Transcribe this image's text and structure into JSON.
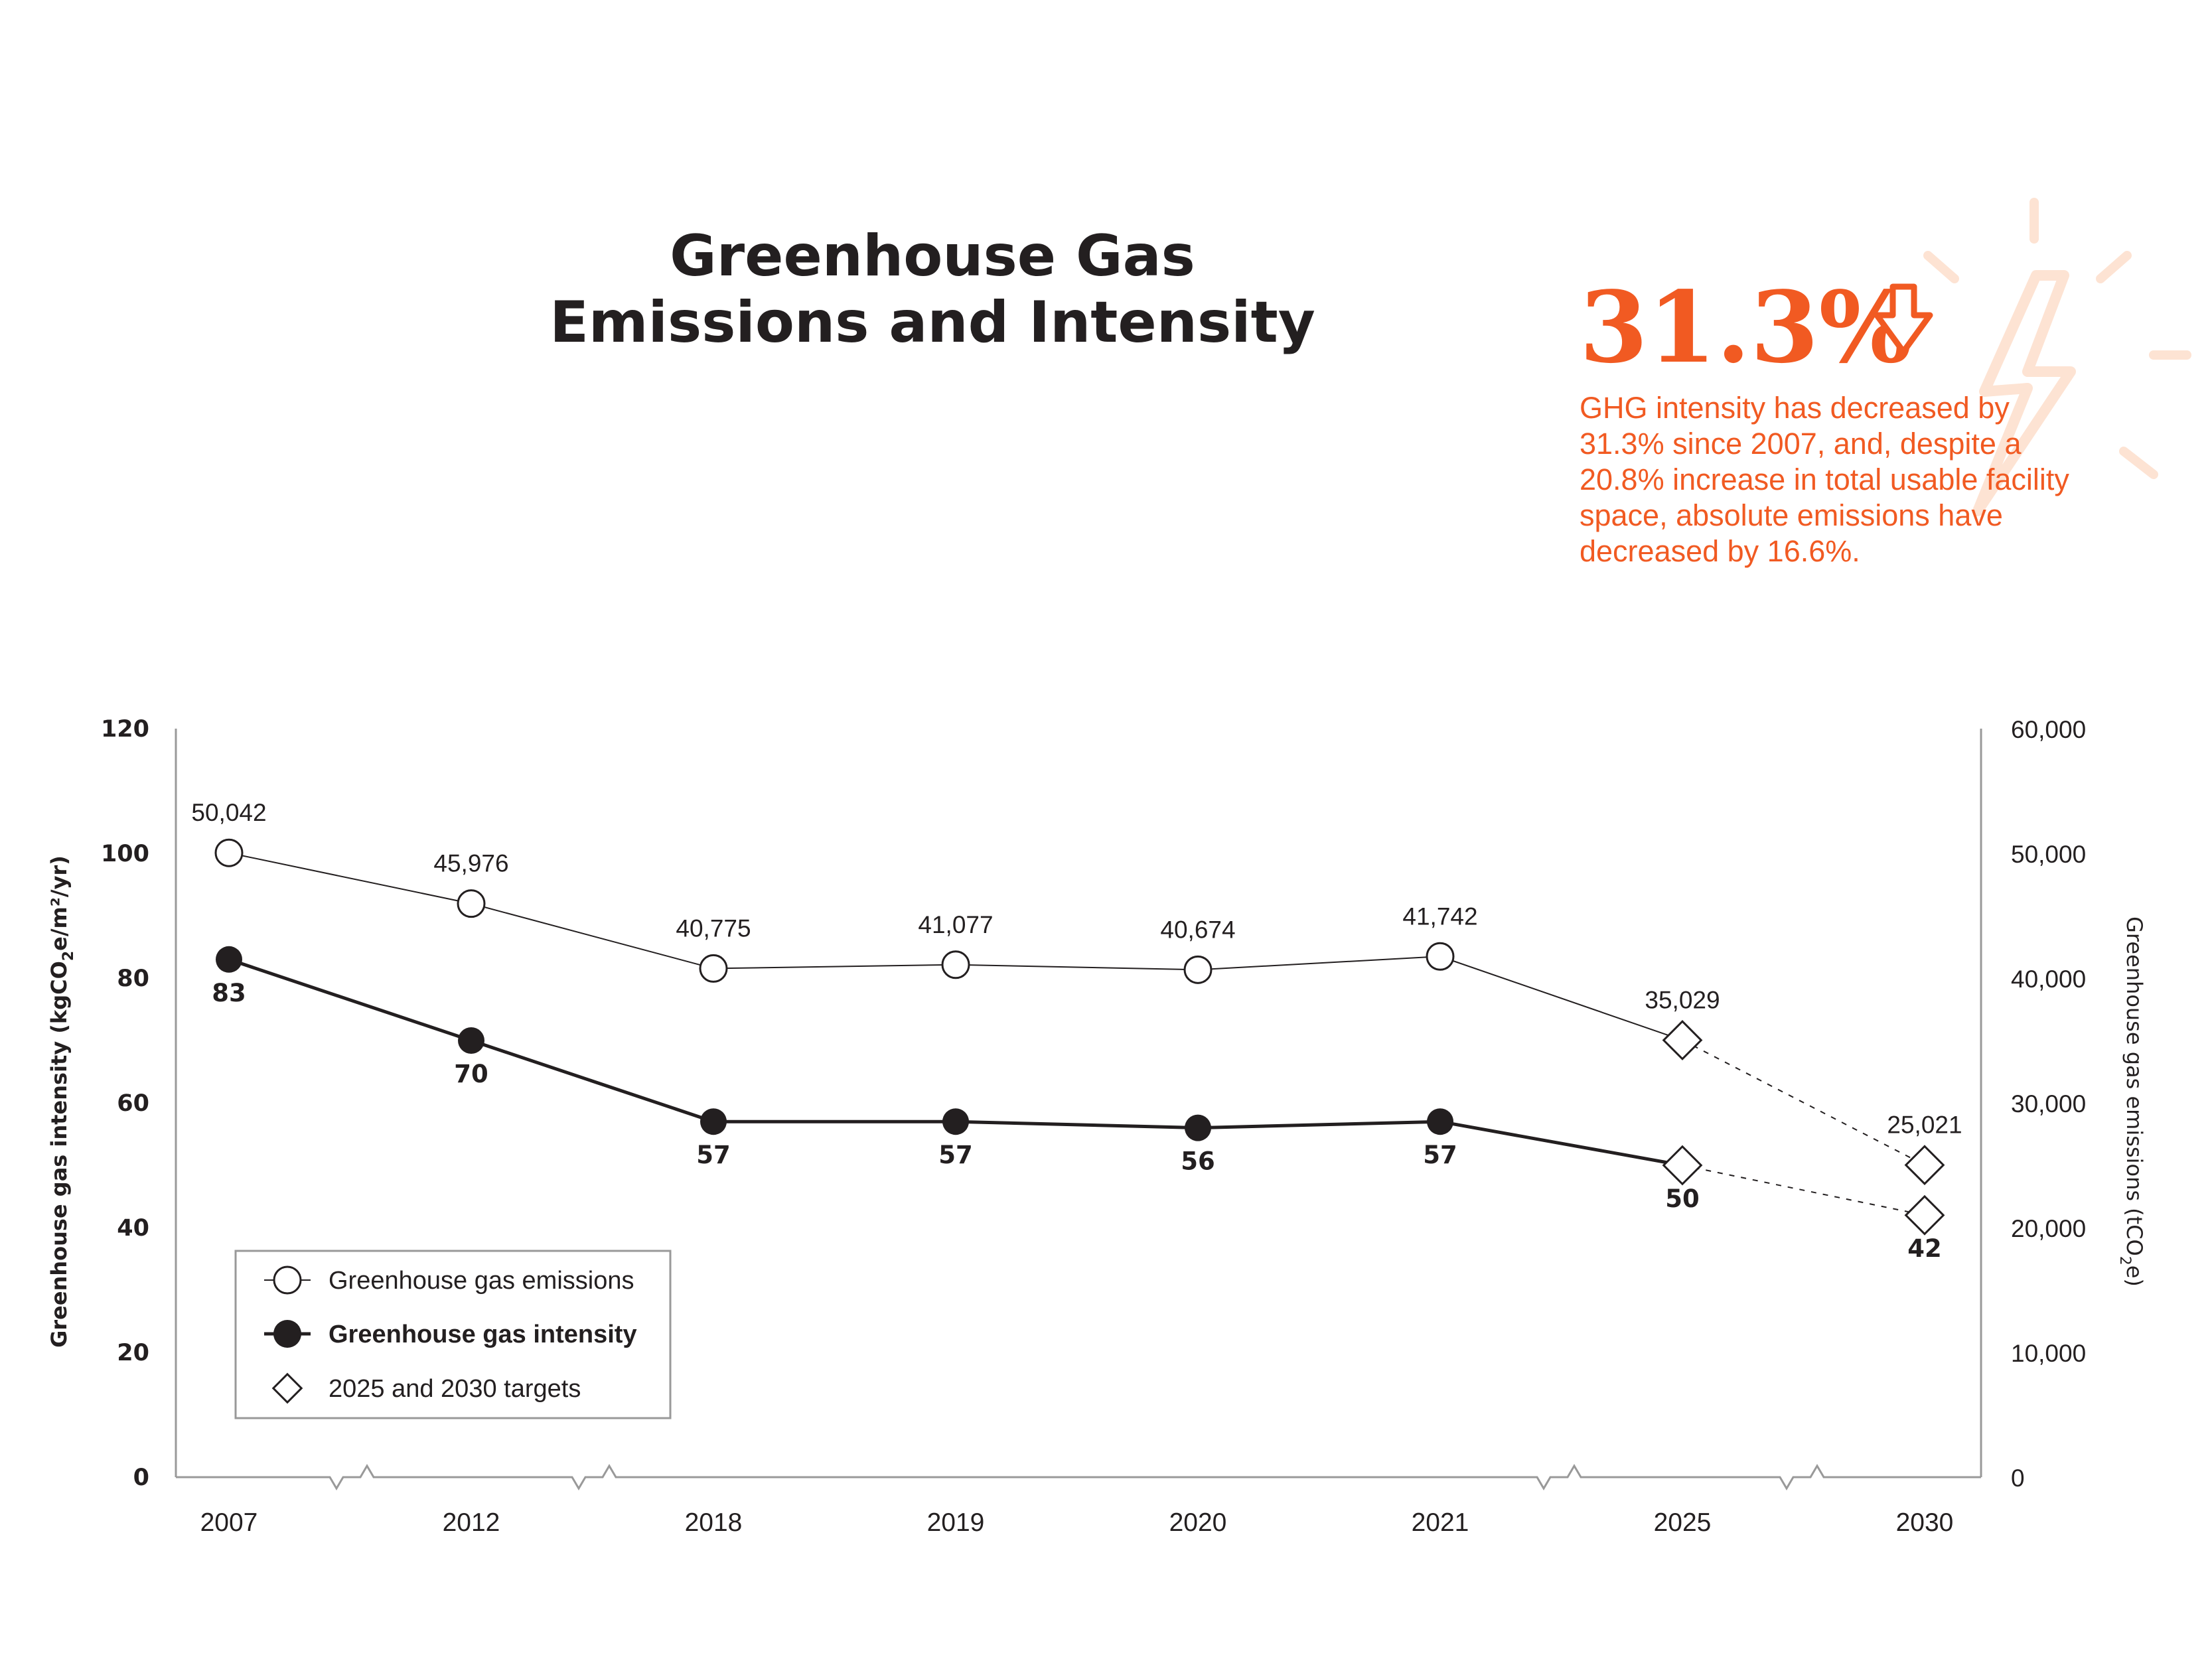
{
  "title_line1": "Greenhouse Gas",
  "title_line2": "Emissions and Intensity",
  "callout": {
    "big_value": "31.3%",
    "arrow_icon": "down-arrow-icon",
    "lines": [
      "GHG intensity has decreased by",
      "31.3% since 2007, and, despite a",
      "20.8% increase in total usable facility",
      "space, absolute emissions have",
      "decreased by 16.6%."
    ]
  },
  "colors": {
    "accent": "#f15a22",
    "accent_light": "#fde3d3",
    "ink": "#231f20",
    "axis": "#999999"
  },
  "chart_data": {
    "type": "line",
    "categories": [
      "2007",
      "2012",
      "2018",
      "2019",
      "2020",
      "2021",
      "2025",
      "2030"
    ],
    "y_left": {
      "label_parts": [
        "Greenhouse gas intensity (kgCO",
        "2",
        "e/m²/yr)"
      ],
      "ylim": [
        0,
        120
      ],
      "ticks": [
        "0",
        "20",
        "40",
        "60",
        "80",
        "100",
        "120"
      ]
    },
    "y_right": {
      "label_parts": [
        "Greenhouse gas emissions (tCO",
        "2",
        "e)"
      ],
      "ylim": [
        0,
        60000
      ],
      "ticks": [
        "0",
        "10,000",
        "20,000",
        "30,000",
        "40,000",
        "50,000",
        "60,000"
      ]
    },
    "axis_breaks_after": [
      "2007",
      "2012",
      "2021",
      "2025"
    ],
    "grid": false,
    "legend_position": "bottom-left",
    "series": [
      {
        "name": "Greenhouse gas emissions",
        "axis": "right",
        "values": [
          50042,
          45976,
          40775,
          41077,
          40674,
          41742,
          35029,
          25021
        ],
        "labels": [
          "50,042",
          "45,976",
          "40,775",
          "41,077",
          "40,674",
          "41,742",
          "35,029",
          "25,021"
        ],
        "target_categories": [
          "2025",
          "2030"
        ]
      },
      {
        "name": "Greenhouse gas intensity",
        "axis": "left",
        "values": [
          83,
          70,
          57,
          57,
          56,
          57,
          50,
          42
        ],
        "labels": [
          "83",
          "70",
          "57",
          "57",
          "56",
          "57",
          "50",
          "42"
        ],
        "target_categories": [
          "2025",
          "2030"
        ]
      }
    ],
    "legend": [
      {
        "label": "Greenhouse gas emissions",
        "marker": "open-circle"
      },
      {
        "label": "Greenhouse gas intensity",
        "marker": "filled-circle"
      },
      {
        "label": "2025 and 2030 targets",
        "marker": "open-diamond"
      }
    ]
  }
}
